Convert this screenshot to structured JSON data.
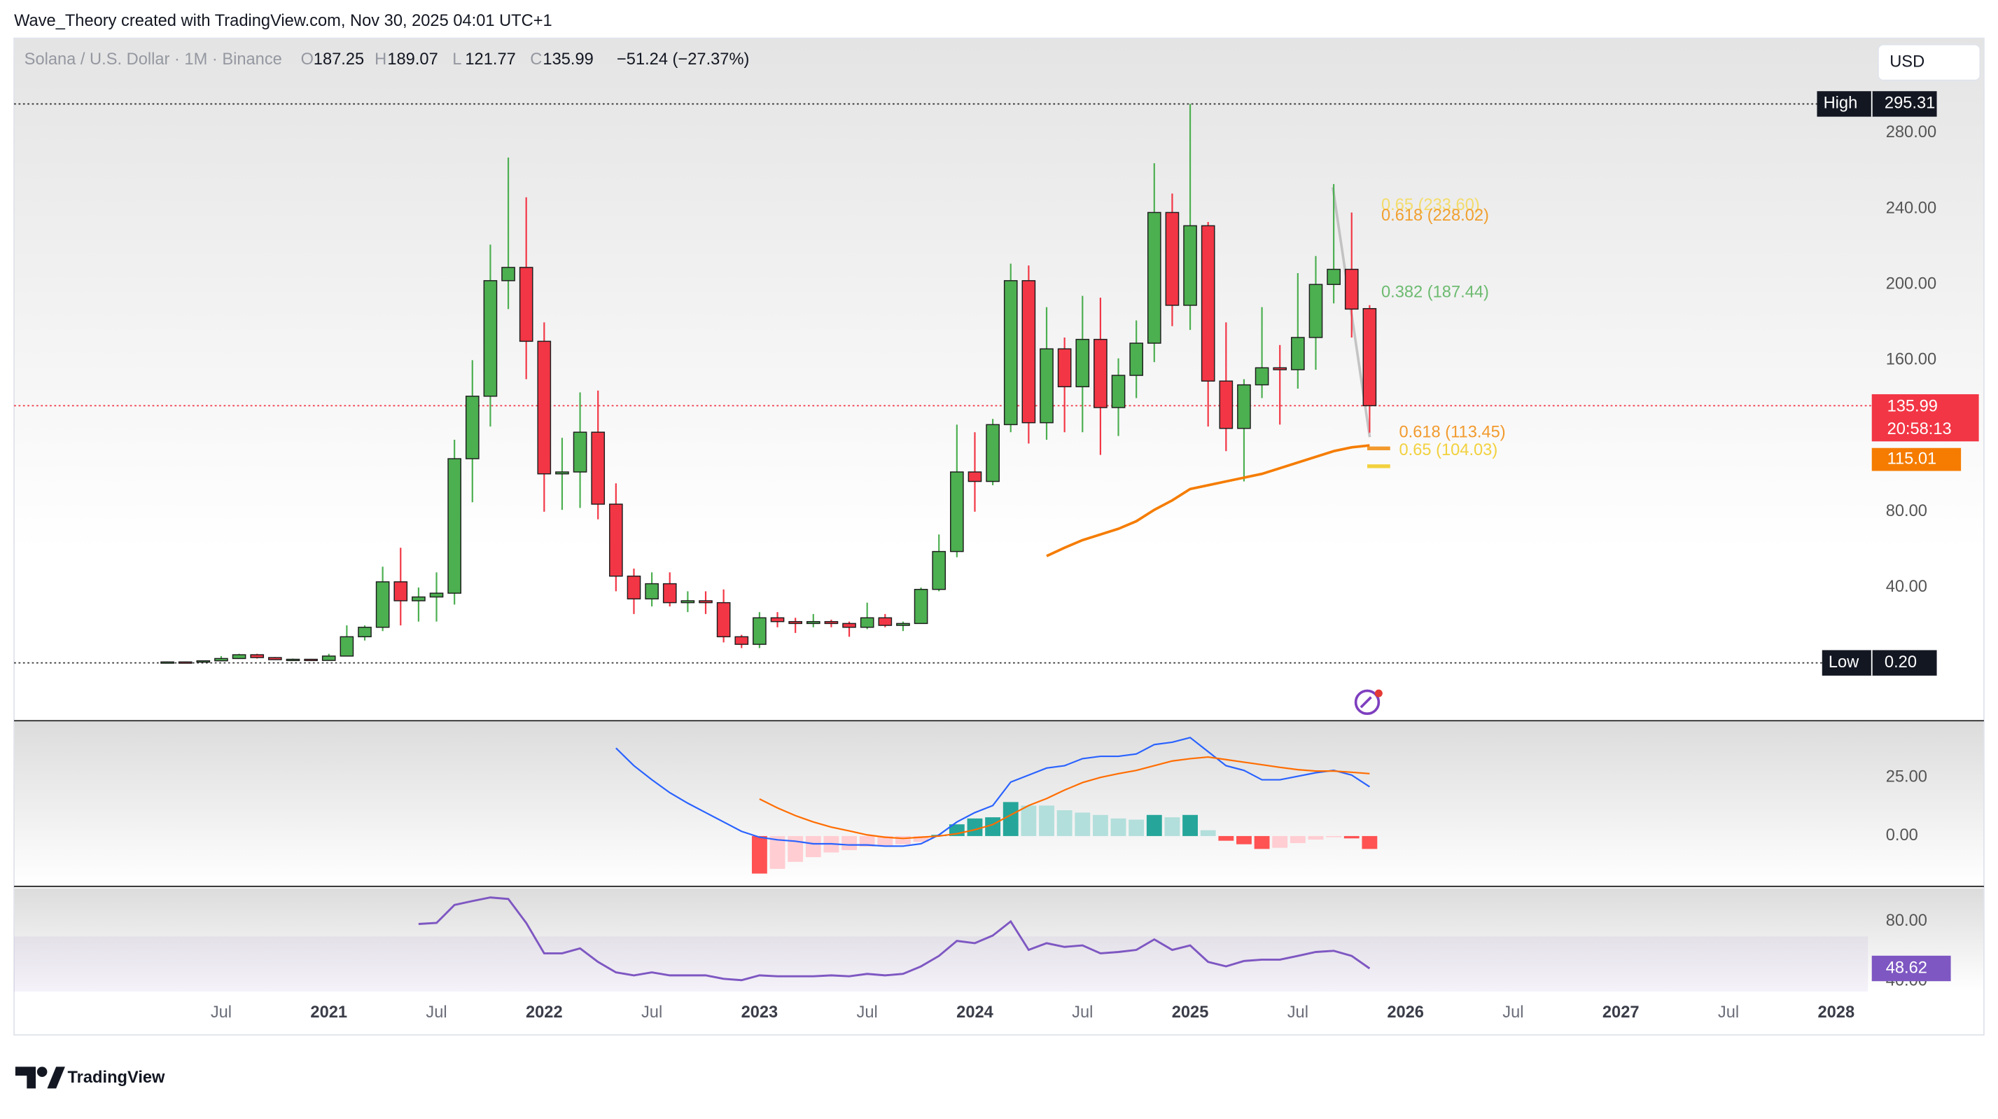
{
  "header": {
    "credit": "Wave_Theory created with TradingView.com, Nov 30, 2025 04:01 UTC+1",
    "currency": "USD",
    "logo": "TradingView"
  },
  "chart_data": {
    "type": "candlestick",
    "title": "Solana / U.S. Dollar · 1M · Binance",
    "ohlc_labels": [
      "O",
      "H",
      "L",
      "C"
    ],
    "change": "−51.24 (−27.37%)",
    "countdown": "20:58:13",
    "colors": {
      "up": "#4caf50",
      "down": "#f23645"
    },
    "x": [
      "2020-04",
      "2020-05",
      "2020-06",
      "2020-07",
      "2020-08",
      "2020-09",
      "2020-10",
      "2020-11",
      "2020-12",
      "2021-01",
      "2021-02",
      "2021-03",
      "2021-04",
      "2021-05",
      "2021-06",
      "2021-07",
      "2021-08",
      "2021-09",
      "2021-10",
      "2021-11",
      "2021-12",
      "2022-01",
      "2022-02",
      "2022-03",
      "2022-04",
      "2022-05",
      "2022-06",
      "2022-07",
      "2022-08",
      "2022-09",
      "2022-10",
      "2022-11",
      "2022-12",
      "2023-01",
      "2023-02",
      "2023-03",
      "2023-04",
      "2023-05",
      "2023-06",
      "2023-07",
      "2023-08",
      "2023-09",
      "2023-10",
      "2023-11",
      "2023-12",
      "2024-01",
      "2024-02",
      "2024-03",
      "2024-04",
      "2024-05",
      "2024-06",
      "2024-07",
      "2024-08",
      "2024-09",
      "2024-10",
      "2024-11",
      "2024-12",
      "2025-01",
      "2025-02",
      "2025-03",
      "2025-04",
      "2025-05",
      "2025-06",
      "2025-07",
      "2025-08",
      "2025-09",
      "2025-10",
      "2025-11"
    ],
    "open": [
      0.6,
      0.7,
      0.6,
      1.3,
      2.5,
      4.5,
      3,
      1.9,
      2.1,
      1.5,
      3.8,
      14,
      19,
      43,
      33,
      35,
      37,
      108,
      141,
      202,
      209,
      170,
      100,
      101,
      122,
      84,
      46,
      34,
      42,
      32,
      33,
      32,
      14,
      10,
      24,
      22,
      21,
      22,
      21,
      19,
      24,
      20,
      21,
      39,
      59,
      101,
      96,
      126,
      202,
      127,
      166,
      146,
      171,
      135,
      152,
      169,
      238,
      189,
      231,
      149,
      124,
      147,
      156,
      155,
      172,
      200,
      208,
      187.25
    ],
    "high": [
      1.0,
      0.9,
      1.5,
      3.8,
      5,
      5,
      3.3,
      2.5,
      2.3,
      5,
      20,
      20,
      51,
      61,
      40,
      48,
      118,
      160,
      221,
      267,
      246,
      180,
      119,
      143,
      144,
      95,
      50,
      48,
      48,
      38,
      38,
      39,
      15,
      27,
      27,
      24,
      26,
      23,
      22,
      32,
      26,
      22,
      40,
      68,
      126,
      122,
      129,
      211,
      210,
      188,
      172,
      194,
      193,
      161,
      181,
      264,
      248,
      295.31,
      233,
      180,
      150,
      188,
      168,
      206,
      215,
      253,
      238,
      189.07
    ],
    "low": [
      0.2,
      0.5,
      0.5,
      1.1,
      2.3,
      2.5,
      1.7,
      1.6,
      1.3,
      1.4,
      3.6,
      12,
      17,
      20,
      22,
      22,
      31,
      85,
      125,
      187,
      150,
      80,
      81,
      82,
      76,
      38,
      26,
      30,
      30,
      27,
      26,
      11,
      8,
      8,
      19,
      16,
      19,
      19,
      14,
      18,
      19,
      17,
      21,
      38,
      56,
      80,
      94,
      122,
      116,
      118,
      122,
      122,
      110,
      120,
      140,
      159,
      178,
      176,
      125,
      112,
      96,
      140,
      126,
      145,
      155,
      190,
      172,
      121.77
    ],
    "close": [
      0.7,
      0.6,
      1.3,
      2.5,
      4.5,
      3,
      1.9,
      2.1,
      1.5,
      3.8,
      14,
      19,
      43,
      33,
      35,
      37,
      108,
      141,
      202,
      209,
      170,
      100,
      101,
      122,
      84,
      46,
      34,
      42,
      32,
      33,
      32,
      14,
      10,
      24,
      22,
      21,
      22,
      21,
      19,
      24,
      20,
      21,
      39,
      59,
      101,
      96,
      126,
      202,
      127,
      166,
      146,
      171,
      135,
      152,
      169,
      238,
      189,
      231,
      149,
      124,
      147,
      156,
      155,
      172,
      200,
      208,
      187,
      135.99
    ],
    "ma": {
      "color": "#f57c00",
      "values": [
        null,
        null,
        null,
        null,
        null,
        null,
        null,
        null,
        null,
        null,
        null,
        null,
        null,
        null,
        null,
        null,
        null,
        null,
        null,
        null,
        null,
        null,
        null,
        null,
        null,
        null,
        null,
        null,
        null,
        null,
        null,
        null,
        null,
        null,
        null,
        null,
        null,
        null,
        null,
        null,
        null,
        null,
        null,
        null,
        null,
        null,
        null,
        null,
        null,
        56.6,
        61,
        65,
        68,
        71,
        75,
        81,
        86,
        92,
        94,
        96,
        98,
        100,
        103,
        106,
        109,
        112,
        114,
        115.01
      ]
    },
    "ylim": [
      -30,
      330
    ],
    "yticks": [
      {
        "value": 40,
        "label": "40.00"
      },
      {
        "value": 80,
        "label": "80.00"
      },
      {
        "value": 160,
        "label": "160.00"
      },
      {
        "value": 200,
        "label": "200.00"
      },
      {
        "value": 240,
        "label": "240.00"
      },
      {
        "value": 280,
        "label": "280.00"
      }
    ],
    "high_marker": {
      "name": "High",
      "value": 295.31
    },
    "low_marker": {
      "name": "Low",
      "value": 0.2,
      "label": "0.20"
    },
    "annotations": [
      {
        "label": "0.65 (233.60)",
        "value": 233.6,
        "color": "#f3dc6a"
      },
      {
        "label": "0.618 (228.02)",
        "value": 228.02,
        "color": "#f0a030"
      },
      {
        "label": "0.382 (187.44)",
        "value": 187.44,
        "color": "#6dbb70"
      },
      {
        "label": "0.618 (113.45)",
        "value": 113.45,
        "color": "#f29a2e"
      },
      {
        "label": "0.65 (104.03)",
        "value": 104.03,
        "color": "#f2d13e"
      }
    ],
    "xticks": [
      {
        "value": "2020-07",
        "label": "Jul"
      },
      {
        "value": "2021-01",
        "label": "2021"
      },
      {
        "value": "2021-07",
        "label": "Jul"
      },
      {
        "value": "2022-01",
        "label": "2022"
      },
      {
        "value": "2022-07",
        "label": "Jul"
      },
      {
        "value": "2023-01",
        "label": "2023"
      },
      {
        "value": "2023-07",
        "label": "Jul"
      },
      {
        "value": "2024-01",
        "label": "2024"
      },
      {
        "value": "2024-07",
        "label": "Jul"
      },
      {
        "value": "2025-01",
        "label": "2025"
      },
      {
        "value": "2025-07",
        "label": "Jul"
      },
      {
        "value": "2026-01",
        "label": "2026"
      },
      {
        "value": "2026-07",
        "label": "Jul"
      },
      {
        "value": "2027-01",
        "label": "2027"
      },
      {
        "value": "2027-07",
        "label": "Jul"
      },
      {
        "value": "2028-01",
        "label": "2028"
      }
    ],
    "macd": {
      "ylim": [
        -21.2,
        48.9
      ],
      "yticks": [
        {
          "value": 25,
          "label": "25.00"
        },
        {
          "value": 0,
          "label": "0.00"
        }
      ],
      "series": [
        {
          "color": "#2962ff",
          "values": [
            null,
            null,
            null,
            null,
            null,
            null,
            null,
            null,
            null,
            null,
            null,
            null,
            null,
            null,
            null,
            null,
            null,
            null,
            null,
            null,
            null,
            null,
            null,
            null,
            null,
            37.5,
            30,
            24,
            18.5,
            14,
            10,
            6,
            2,
            -0.5,
            -1.6,
            -2.2,
            -3.3,
            -3.3,
            -3.8,
            -3.8,
            -4.3,
            -4.3,
            -3.3,
            0.5,
            6,
            10,
            13,
            23,
            26,
            29,
            30,
            33,
            34,
            34,
            35,
            39,
            40,
            42,
            36,
            30,
            28,
            24,
            24,
            25.5,
            27,
            28,
            26,
            21
          ]
        },
        {
          "color": "#ff6d00",
          "values": [
            null,
            null,
            null,
            null,
            null,
            null,
            null,
            null,
            null,
            null,
            null,
            null,
            null,
            null,
            null,
            null,
            null,
            null,
            null,
            null,
            null,
            null,
            null,
            null,
            null,
            null,
            null,
            null,
            null,
            null,
            null,
            null,
            null,
            15.8,
            12,
            8.7,
            6,
            3.8,
            2.2,
            0.5,
            -0.5,
            -1,
            -0.5,
            0,
            1,
            2.7,
            4.9,
            9,
            13,
            16,
            19.6,
            22.8,
            25,
            26.6,
            28,
            30,
            32,
            33,
            33.7,
            32.6,
            31.5,
            30.4,
            29.3,
            28.3,
            27.7,
            27.7,
            27.2,
            26.6
          ]
        }
      ],
      "histogram": {
        "colors": [
          "#26a69a",
          "#b2dfdb",
          "#ffcdd2",
          "#ff5252"
        ],
        "values": [
          null,
          null,
          null,
          null,
          null,
          null,
          null,
          null,
          null,
          null,
          null,
          null,
          null,
          null,
          null,
          null,
          null,
          null,
          null,
          null,
          null,
          null,
          null,
          null,
          null,
          null,
          null,
          null,
          null,
          null,
          null,
          null,
          null,
          -16,
          -14,
          -11,
          -9,
          -7,
          -6,
          -4.5,
          -4,
          -3.5,
          -2.5,
          0.5,
          5,
          7.5,
          8,
          14.5,
          13,
          13,
          11,
          10,
          9,
          7.5,
          7,
          9,
          8,
          9,
          2.5,
          -2,
          -3.5,
          -5.5,
          -5,
          -3,
          -1.5,
          -0.5,
          -1,
          -5.5
        ]
      }
    },
    "rsi": {
      "color": "#7e57c2",
      "ylim": [
        33.2,
        102.1
      ],
      "band": [
        30,
        70
      ],
      "yticks": [
        {
          "value": 80,
          "label": "80.00"
        },
        {
          "value": 40,
          "label": "40.00"
        }
      ],
      "values": [
        null,
        null,
        null,
        null,
        null,
        null,
        null,
        null,
        null,
        null,
        null,
        null,
        null,
        null,
        78.3,
        79,
        91,
        93.6,
        96,
        95,
        79,
        58.7,
        58.7,
        62,
        53,
        46,
        44,
        46,
        44,
        44,
        44,
        41.7,
        40.8,
        44,
        43.4,
        43.4,
        43.4,
        44,
        43.4,
        45,
        44,
        45,
        50,
        57,
        67,
        65.5,
        70.6,
        80,
        61,
        65.5,
        63,
        64,
        58.7,
        59.6,
        61,
        68,
        61,
        64,
        53,
        50,
        53.6,
        54.5,
        54.5,
        57,
        59.6,
        60.4,
        57,
        48.62
      ]
    }
  }
}
